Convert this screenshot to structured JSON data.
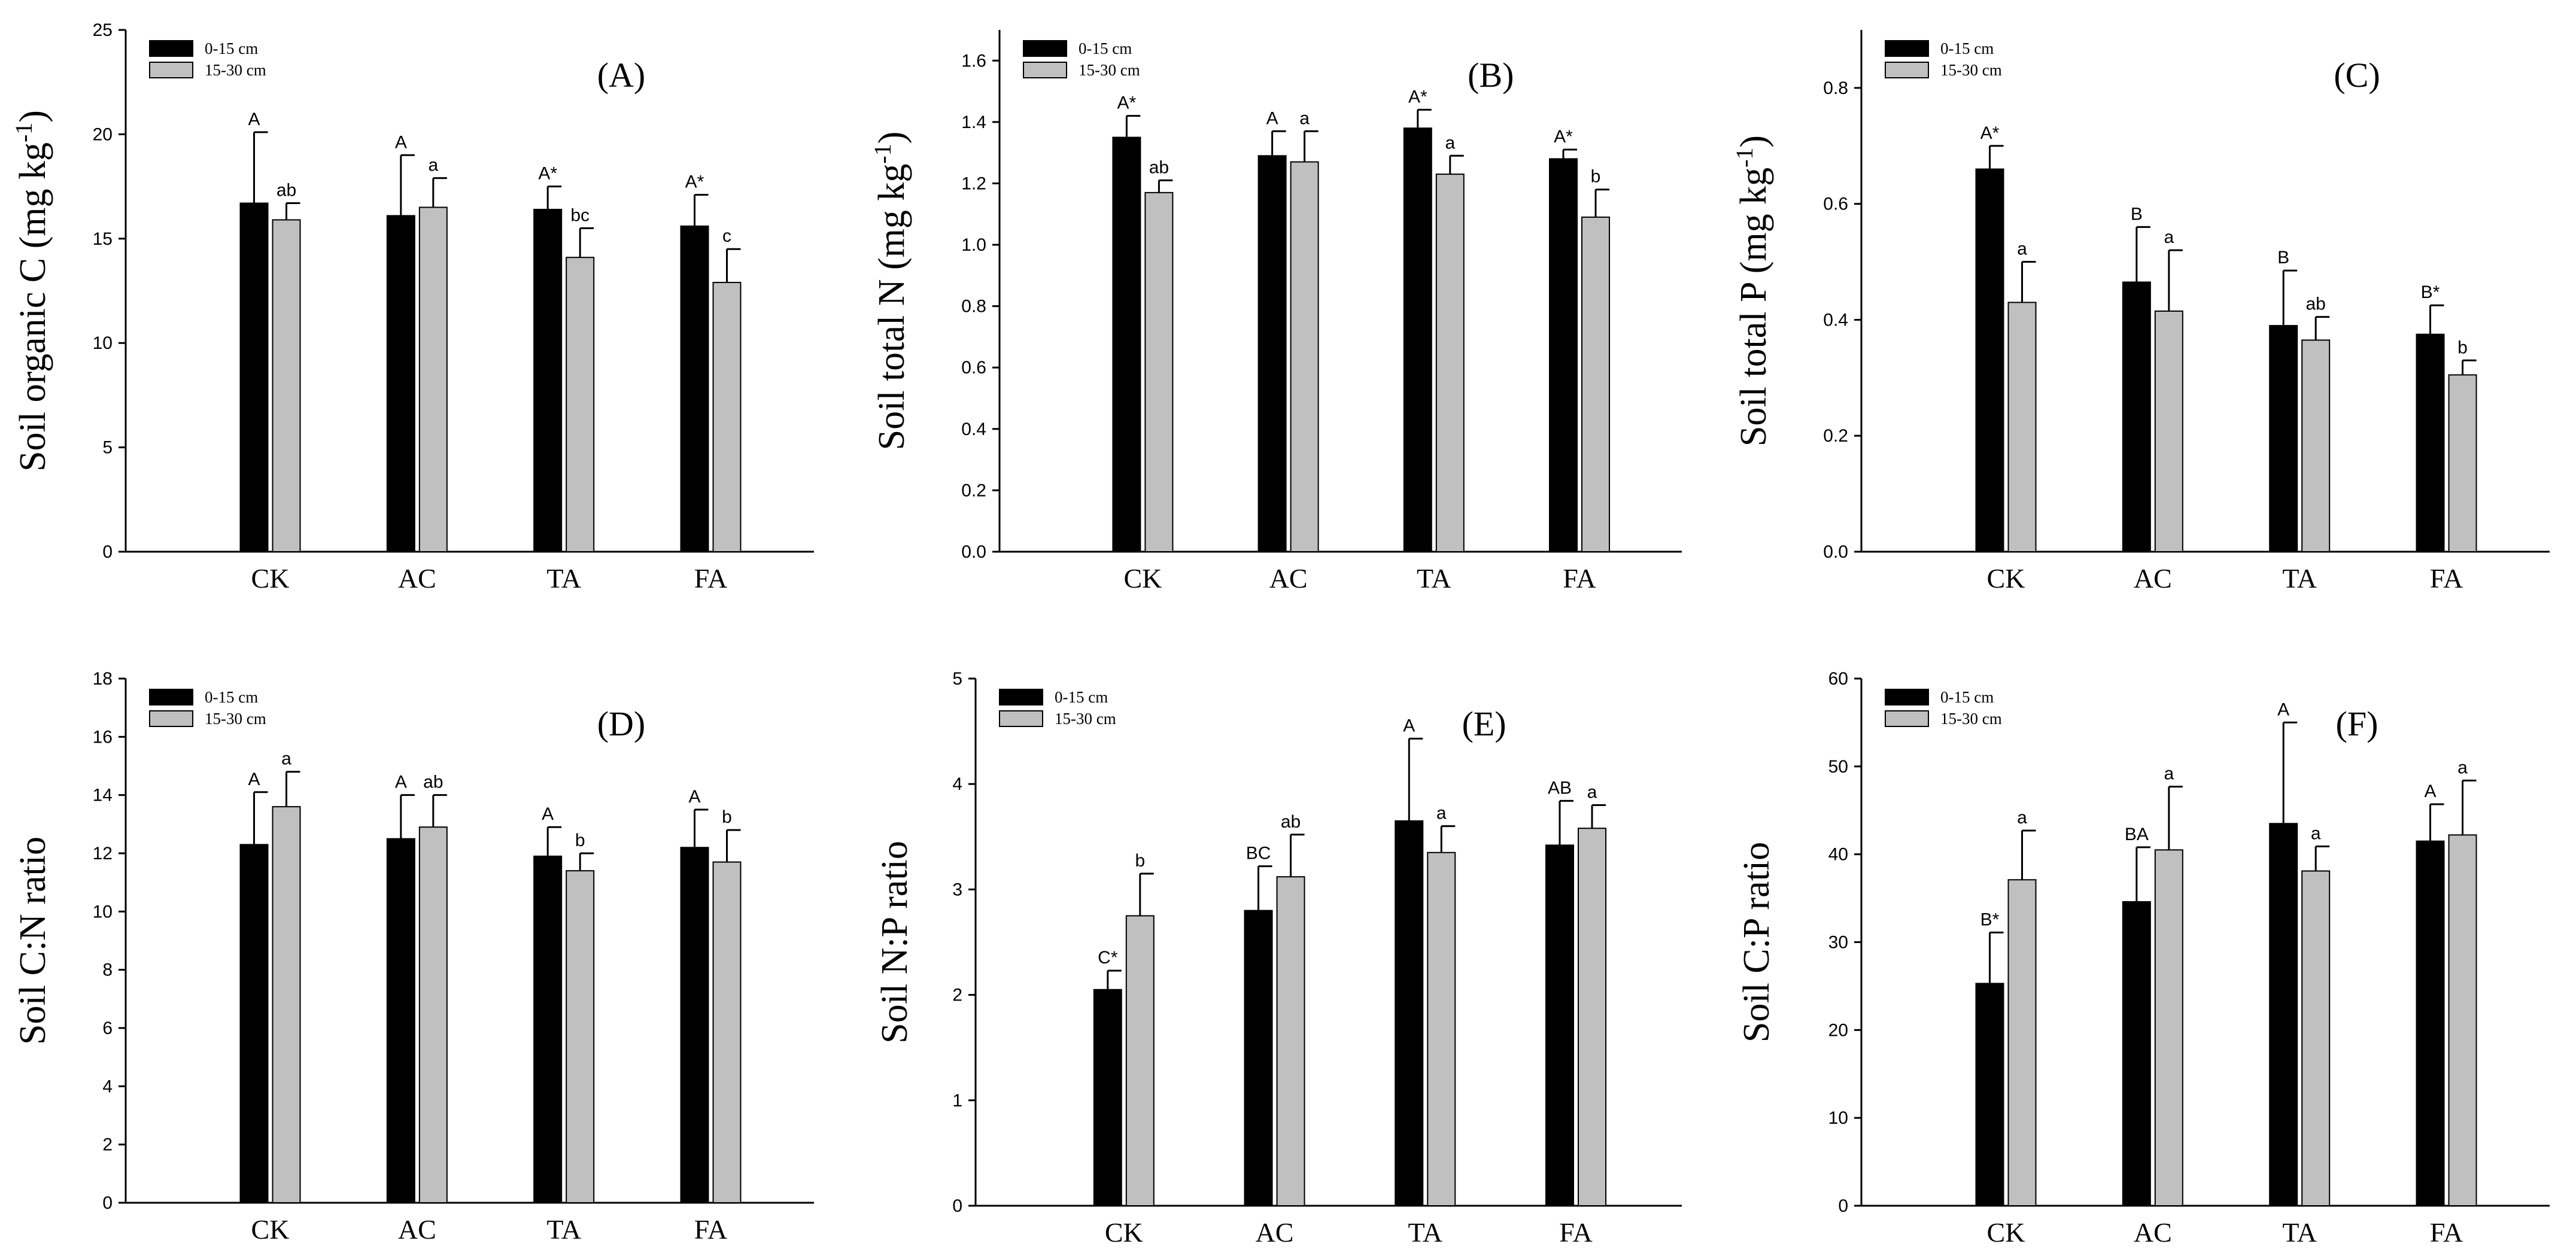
{
  "legend": {
    "series1": "0-15 cm",
    "series2": "15-30 cm",
    "color1": "#000000",
    "color2": "#c0c0c0"
  },
  "chart_data": [
    {
      "type": "bar",
      "panel": "(A)",
      "ylabel": "Soil organic C (mg kg",
      "ylabel_sup": "-1",
      "ylabel_end": ")",
      "categories": [
        "CK",
        "AC",
        "TA",
        "FA"
      ],
      "ylim": [
        0,
        25
      ],
      "yticks": [
        0,
        5,
        10,
        15,
        20,
        25
      ],
      "ytick_labels": [
        "0",
        "5",
        "10",
        "15",
        "20",
        "25"
      ],
      "series": [
        {
          "name": "0-15 cm",
          "values": [
            16.7,
            16.1,
            16.4,
            15.6
          ],
          "errors": [
            3.4,
            2.9,
            1.1,
            1.5
          ],
          "labels": [
            "A",
            "A",
            "A*",
            "A*"
          ]
        },
        {
          "name": "15-30 cm",
          "values": [
            15.9,
            16.5,
            14.1,
            12.9
          ],
          "errors": [
            0.8,
            1.4,
            1.4,
            1.6
          ],
          "labels": [
            "ab",
            "a",
            "bc",
            "c"
          ]
        }
      ]
    },
    {
      "type": "bar",
      "panel": "(B)",
      "ylabel": "Soil total N (mg kg",
      "ylabel_sup": "-1",
      "ylabel_end": ")",
      "categories": [
        "CK",
        "AC",
        "TA",
        "FA"
      ],
      "ylim": [
        0,
        1.7
      ],
      "yticks": [
        0,
        0.2,
        0.4,
        0.6,
        0.8,
        1.0,
        1.2,
        1.4,
        1.6
      ],
      "ytick_labels": [
        "0.0",
        "0.2",
        "0.4",
        "0.6",
        "0.8",
        "1.0",
        "1.2",
        "1.4",
        "1.6"
      ],
      "series": [
        {
          "name": "0-15 cm",
          "values": [
            1.35,
            1.29,
            1.38,
            1.28
          ],
          "errors": [
            0.07,
            0.08,
            0.06,
            0.03
          ],
          "labels": [
            "A*",
            "A",
            "A*",
            "A*"
          ]
        },
        {
          "name": "15-30 cm",
          "values": [
            1.17,
            1.27,
            1.23,
            1.09
          ],
          "errors": [
            0.04,
            0.1,
            0.06,
            0.09
          ],
          "labels": [
            "ab",
            "a",
            "a",
            "b"
          ]
        }
      ]
    },
    {
      "type": "bar",
      "panel": "(C)",
      "ylabel": "Soil total P (mg kg",
      "ylabel_sup": "-1",
      "ylabel_end": ")",
      "categories": [
        "CK",
        "AC",
        "TA",
        "FA"
      ],
      "ylim": [
        0,
        0.9
      ],
      "yticks": [
        0,
        0.2,
        0.4,
        0.6,
        0.8
      ],
      "ytick_labels": [
        "0.0",
        "0.2",
        "0.4",
        "0.6",
        "0.8"
      ],
      "series": [
        {
          "name": "0-15 cm",
          "values": [
            0.66,
            0.465,
            0.39,
            0.375
          ],
          "errors": [
            0.04,
            0.095,
            0.095,
            0.05
          ],
          "labels": [
            "A*",
            "B",
            "B",
            "B*"
          ]
        },
        {
          "name": "15-30 cm",
          "values": [
            0.43,
            0.415,
            0.365,
            0.305
          ],
          "errors": [
            0.07,
            0.105,
            0.04,
            0.025
          ],
          "labels": [
            "a",
            "a",
            "ab",
            "b"
          ]
        }
      ]
    },
    {
      "type": "bar",
      "panel": "(D)",
      "ylabel": "Soil C:N ratio",
      "ylabel_sup": "",
      "ylabel_end": "",
      "categories": [
        "CK",
        "AC",
        "TA",
        "FA"
      ],
      "ylim": [
        0,
        18
      ],
      "yticks": [
        0,
        2,
        4,
        6,
        8,
        10,
        12,
        14,
        16,
        18
      ],
      "ytick_labels": [
        "0",
        "2",
        "4",
        "6",
        "8",
        "10",
        "12",
        "14",
        "16",
        "18"
      ],
      "series": [
        {
          "name": "0-15 cm",
          "values": [
            12.3,
            12.5,
            11.9,
            12.2
          ],
          "errors": [
            1.8,
            1.5,
            1.0,
            1.3
          ],
          "labels": [
            "A",
            "A",
            "A",
            "A"
          ]
        },
        {
          "name": "15-30 cm",
          "values": [
            13.6,
            12.9,
            11.4,
            11.7
          ],
          "errors": [
            1.2,
            1.1,
            0.6,
            1.1
          ],
          "labels": [
            "a",
            "ab",
            "b",
            "b"
          ]
        }
      ]
    },
    {
      "type": "bar",
      "panel": "(E)",
      "ylabel": "Soil N:P ratio",
      "ylabel_sup": "",
      "ylabel_end": "",
      "categories": [
        "CK",
        "AC",
        "TA",
        "FA"
      ],
      "ylim": [
        0,
        5
      ],
      "yticks": [
        0,
        1,
        2,
        3,
        4,
        5
      ],
      "ytick_labels": [
        "0",
        "1",
        "2",
        "3",
        "4",
        "5"
      ],
      "series": [
        {
          "name": "0-15 cm",
          "values": [
            2.05,
            2.8,
            3.65,
            3.42
          ],
          "errors": [
            0.18,
            0.42,
            0.78,
            0.42
          ],
          "labels": [
            "C*",
            "BC",
            "A",
            "AB"
          ]
        },
        {
          "name": "15-30 cm",
          "values": [
            2.75,
            3.12,
            3.35,
            3.58
          ],
          "errors": [
            0.4,
            0.4,
            0.25,
            0.22
          ],
          "labels": [
            "b",
            "ab",
            "a",
            "a"
          ]
        }
      ]
    },
    {
      "type": "bar",
      "panel": "(F)",
      "ylabel": "Soil C:P ratio",
      "ylabel_sup": "",
      "ylabel_end": "",
      "categories": [
        "CK",
        "AC",
        "TA",
        "FA"
      ],
      "ylim": [
        0,
        60
      ],
      "yticks": [
        0,
        10,
        20,
        30,
        40,
        50,
        60
      ],
      "ytick_labels": [
        "0",
        "10",
        "20",
        "30",
        "40",
        "50",
        "60"
      ],
      "series": [
        {
          "name": "0-15 cm",
          "values": [
            25.3,
            34.6,
            43.5,
            41.5
          ],
          "errors": [
            5.8,
            6.2,
            11.5,
            4.2
          ],
          "labels": [
            "B*",
            "BA",
            "A",
            "A"
          ]
        },
        {
          "name": "15-30 cm",
          "values": [
            37.1,
            40.5,
            38.1,
            42.2
          ],
          "errors": [
            5.6,
            7.2,
            2.8,
            6.2
          ],
          "labels": [
            "a",
            "a",
            "a",
            "a"
          ]
        }
      ]
    }
  ]
}
